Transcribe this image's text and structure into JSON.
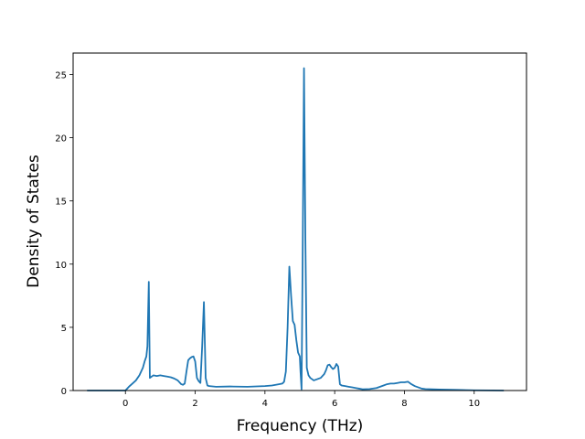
{
  "chart_data": {
    "type": "line",
    "title": "",
    "xlabel": "Frequency (THz)",
    "ylabel": "Density of States",
    "xlim": [
      -1.5,
      11.5
    ],
    "ylim": [
      0,
      26.7
    ],
    "xticks": [
      0,
      2,
      4,
      6,
      8,
      10
    ],
    "yticks": [
      0,
      5,
      10,
      15,
      20,
      25
    ],
    "grid": false,
    "legend": "none",
    "series": [
      {
        "color": "#1f77b4",
        "x": [
          -1.1,
          -0.5,
          0.0,
          0.1,
          0.2,
          0.3,
          0.4,
          0.5,
          0.55,
          0.6,
          0.63,
          0.67,
          0.7,
          0.8,
          0.9,
          1.0,
          1.1,
          1.2,
          1.3,
          1.4,
          1.5,
          1.6,
          1.65,
          1.7,
          1.75,
          1.8,
          1.85,
          1.9,
          1.95,
          2.0,
          2.05,
          2.1,
          2.15,
          2.2,
          2.25,
          2.3,
          2.35,
          2.4,
          2.6,
          3.0,
          3.5,
          4.0,
          4.2,
          4.4,
          4.5,
          4.55,
          4.6,
          4.65,
          4.7,
          4.75,
          4.8,
          4.85,
          4.9,
          4.95,
          5.0,
          5.02,
          5.05,
          5.08,
          5.12,
          5.16,
          5.2,
          5.25,
          5.3,
          5.4,
          5.5,
          5.6,
          5.7,
          5.75,
          5.8,
          5.85,
          5.9,
          5.95,
          6.0,
          6.05,
          6.1,
          6.15,
          6.2,
          6.3,
          6.4,
          6.5,
          6.6,
          6.7,
          6.8,
          7.0,
          7.2,
          7.4,
          7.5,
          7.6,
          7.7,
          7.8,
          7.9,
          8.0,
          8.1,
          8.2,
          8.3,
          8.4,
          8.5,
          8.6,
          8.8,
          9.0,
          9.5,
          10.0,
          10.5,
          10.85
        ],
        "y": [
          0,
          0,
          0.0,
          0.3,
          0.55,
          0.8,
          1.2,
          1.8,
          2.3,
          2.7,
          3.5,
          8.6,
          1.0,
          1.2,
          1.15,
          1.2,
          1.15,
          1.1,
          1.05,
          0.95,
          0.8,
          0.5,
          0.45,
          0.55,
          1.5,
          2.4,
          2.55,
          2.65,
          2.7,
          2.3,
          1.0,
          0.75,
          0.6,
          3.5,
          7.0,
          1.0,
          0.4,
          0.35,
          0.3,
          0.32,
          0.3,
          0.35,
          0.4,
          0.5,
          0.55,
          0.7,
          1.5,
          5.0,
          9.8,
          7.5,
          5.5,
          5.2,
          4.0,
          3.0,
          2.7,
          1.5,
          0.1,
          10.0,
          25.5,
          12.0,
          1.8,
          1.2,
          1.0,
          0.8,
          0.9,
          1.0,
          1.3,
          1.6,
          2.0,
          2.05,
          1.85,
          1.7,
          1.8,
          2.1,
          1.9,
          0.5,
          0.4,
          0.35,
          0.3,
          0.25,
          0.2,
          0.15,
          0.1,
          0.12,
          0.2,
          0.4,
          0.5,
          0.55,
          0.55,
          0.6,
          0.65,
          0.65,
          0.7,
          0.5,
          0.35,
          0.25,
          0.15,
          0.12,
          0.1,
          0.08,
          0.05,
          0.02,
          0.01,
          0.0
        ]
      }
    ]
  }
}
